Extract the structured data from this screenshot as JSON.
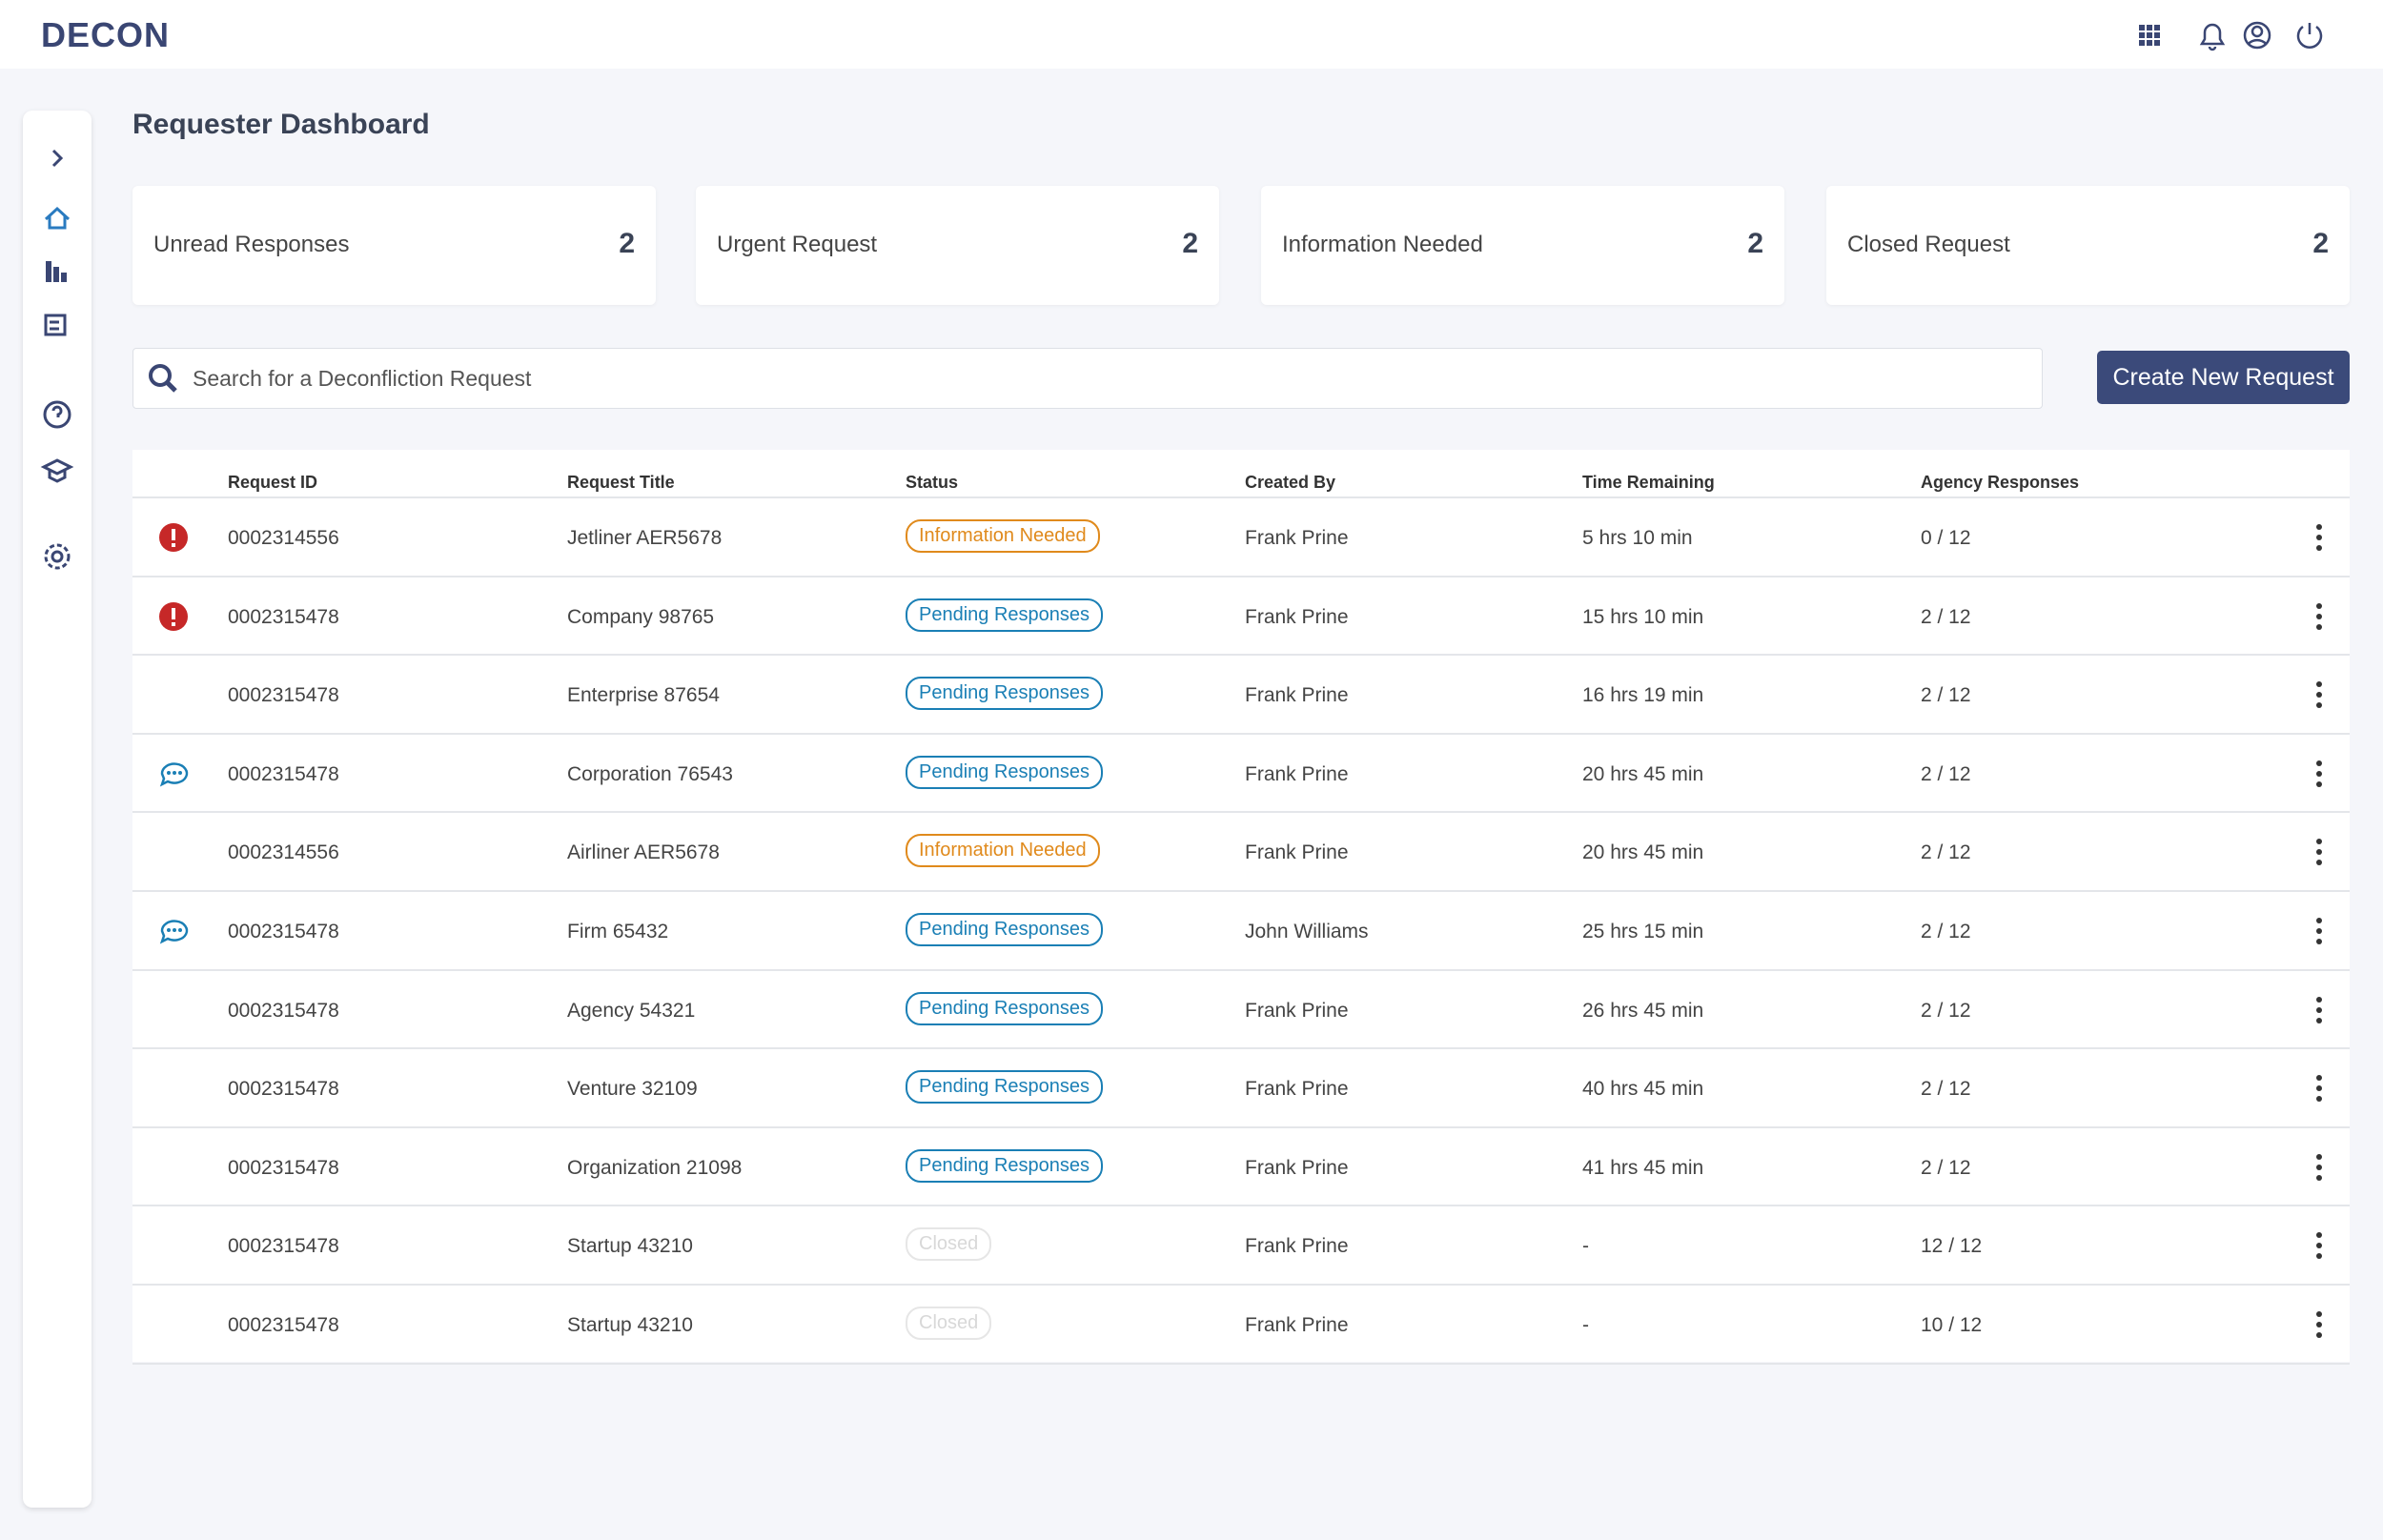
{
  "header": {
    "logo": "DECON"
  },
  "page_title": "Requester Dashboard",
  "cards": [
    {
      "label": "Unread Responses",
      "count": "2"
    },
    {
      "label": "Urgent Request",
      "count": "2"
    },
    {
      "label": "Information Needed",
      "count": "2"
    },
    {
      "label": "Closed Request",
      "count": "2"
    }
  ],
  "search": {
    "placeholder": "Search for a Deconfliction Request"
  },
  "create_button": "Create New Request",
  "table": {
    "columns": [
      "Request ID",
      "Request Title",
      "Status",
      "Created By",
      "Time Remaining",
      "Agency Responses"
    ],
    "rows": [
      [
        "0002314556",
        "Jetliner AER5678",
        "Information Needed",
        "Frank Prine",
        "5 hrs 10 min",
        "0 / 12"
      ],
      [
        "0002315478",
        "Company 98765",
        "Pending Responses",
        "Frank Prine",
        "15 hrs 10 min",
        "2 / 12"
      ],
      [
        "0002315478",
        "Enterprise 87654",
        "Pending Responses",
        "Frank Prine",
        "16 hrs 19 min",
        "2 / 12"
      ],
      [
        "0002315478",
        "Corporation 76543",
        "Pending Responses",
        "Frank Prine",
        "20 hrs 45 min",
        "2 / 12"
      ],
      [
        "0002314556",
        "Airliner AER5678",
        "Information Needed",
        "Frank Prine",
        "20 hrs 45 min",
        "2 / 12"
      ],
      [
        "0002315478",
        "Firm 65432",
        "Pending Responses",
        "John Williams",
        "25 hrs 15 min",
        "2 / 12"
      ],
      [
        "0002315478",
        "Agency 54321",
        "Pending Responses",
        "Frank Prine",
        "26 hrs 45 min",
        "2 / 12"
      ],
      [
        "0002315478",
        "Venture 32109",
        "Pending Responses",
        "Frank Prine",
        "40 hrs 45 min",
        "2 / 12"
      ],
      [
        "0002315478",
        "Organization 21098",
        "Pending Responses",
        "Frank Prine",
        "41 hrs 45 min",
        "2 / 12"
      ],
      [
        "0002315478",
        "Startup 43210",
        "Closed",
        "Frank Prine",
        "-",
        "12 / 12"
      ],
      [
        "0002315478",
        "Startup 43210",
        "Closed",
        "Frank Prine",
        "-",
        "10 / 12"
      ]
    ]
  }
}
